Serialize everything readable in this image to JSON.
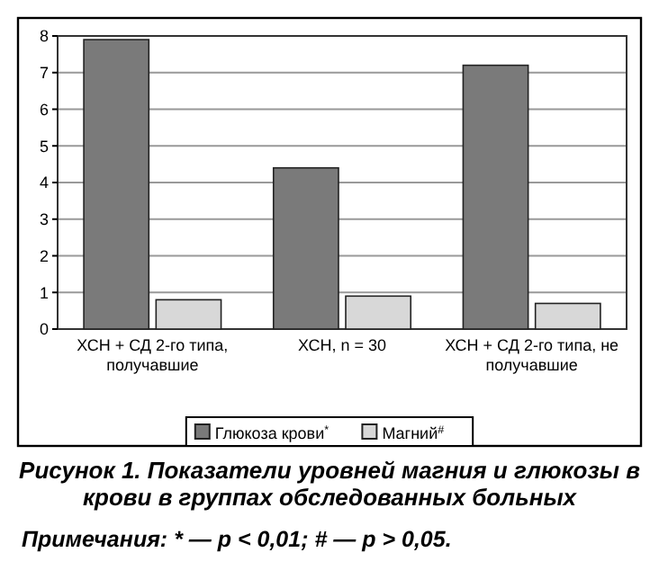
{
  "chart_data": {
    "type": "bar",
    "title": "Рисунок 1. Показатели уровней магния и глюкозы в крови в группах обследованных больных",
    "categories": [
      "ХСН + СД 2-го типа, получавшие",
      "ХСН, n = 30",
      "ХСН + СД 2-го типа, не получавшие"
    ],
    "series": [
      {
        "name": "Глюкоза крови$^{*}$",
        "color": "#7a7a7a",
        "values": [
          7.9,
          4.4,
          7.2
        ]
      },
      {
        "name": "Магний$^{#}$",
        "color": "#d8d8d8",
        "values": [
          0.8,
          0.9,
          0.7
        ]
      }
    ],
    "ylim": [
      0,
      8
    ],
    "yticks": [
      0,
      1,
      2,
      3,
      4,
      5,
      6,
      7,
      8
    ],
    "grid": "y",
    "legend": "bottom",
    "annotations": [
      "Примечания: * — p < 0,01; # — p > 0,05."
    ]
  }
}
